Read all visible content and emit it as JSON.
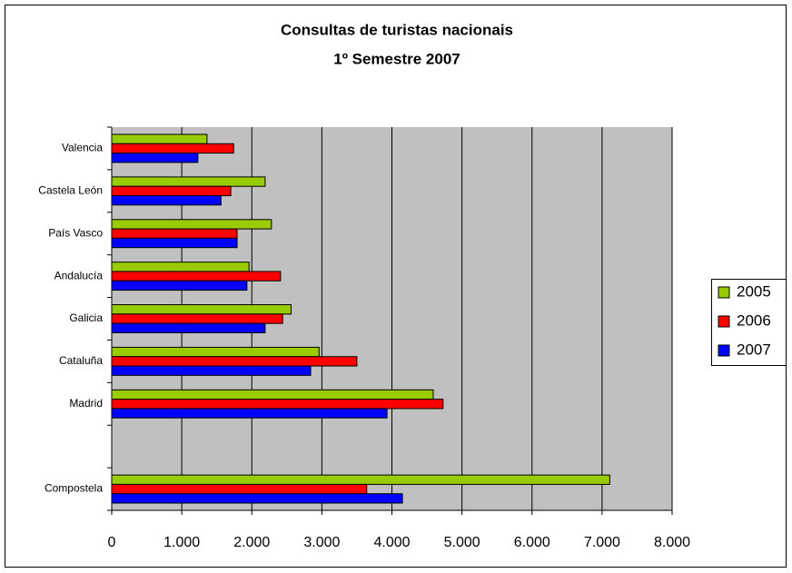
{
  "chart_data": {
    "type": "hbar",
    "title": "Consultas de turistas nacionais",
    "subtitle": "1º Semestre 2007",
    "categories": [
      "Valencia",
      "Castela León",
      "País Vasco",
      "Andalucía",
      "Galicia",
      "Cataluña",
      "Madrid",
      null,
      "Compostela"
    ],
    "series": [
      {
        "name": "2005",
        "color": "#99cc00",
        "values": [
          1360,
          2190,
          2280,
          1960,
          2560,
          2960,
          4590,
          null,
          7110
        ]
      },
      {
        "name": "2006",
        "color": "#ff0000",
        "values": [
          1740,
          1700,
          1790,
          2410,
          2440,
          3500,
          4730,
          null,
          3640
        ]
      },
      {
        "name": "2007",
        "color": "#0000ff",
        "values": [
          1230,
          1560,
          1790,
          1930,
          2190,
          2840,
          3930,
          null,
          4150
        ]
      }
    ],
    "xlim": [
      0,
      8000
    ],
    "xticks": [
      0,
      {
        "value": 1000,
        "label": "1.000"
      },
      {
        "value": 2000,
        "label": "2.000"
      },
      {
        "value": 3000,
        "label": "3.000"
      },
      {
        "value": 4000,
        "label": "4.000"
      },
      {
        "value": 5000,
        "label": "5.000"
      },
      {
        "value": 6000,
        "label": "6.000"
      },
      {
        "value": 7000,
        "label": "7.000"
      },
      {
        "value": 8000,
        "label": "8.000"
      }
    ],
    "grid": true,
    "legend": "right"
  }
}
